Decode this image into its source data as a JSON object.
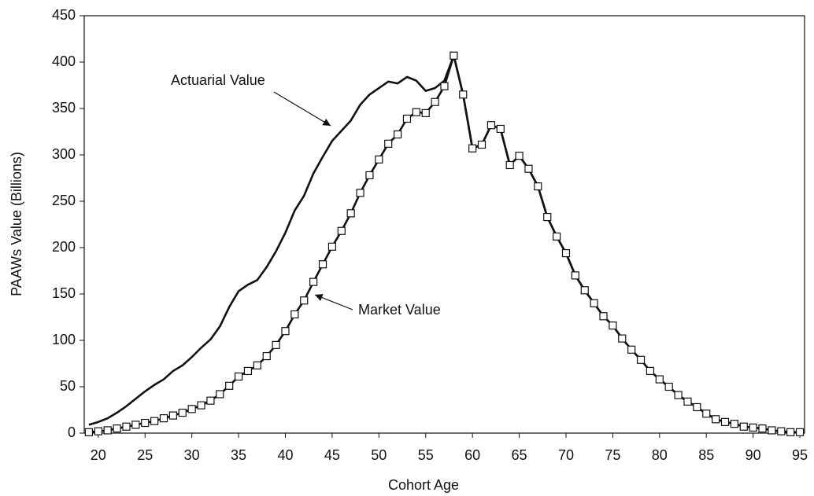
{
  "chart_data": {
    "type": "line",
    "xlabel": "Cohort Age",
    "ylabel": "PAAWs Value (Billions)",
    "annotations": [
      "Actuarial Value",
      "Market Value"
    ],
    "x": [
      19,
      20,
      21,
      22,
      23,
      24,
      25,
      26,
      27,
      28,
      29,
      30,
      31,
      32,
      33,
      34,
      35,
      36,
      37,
      38,
      39,
      40,
      41,
      42,
      43,
      44,
      45,
      46,
      47,
      48,
      49,
      50,
      51,
      52,
      53,
      54,
      55,
      56,
      57,
      58,
      59,
      60,
      61,
      62,
      63,
      64,
      65,
      66,
      67,
      68,
      69,
      70,
      71,
      72,
      73,
      74,
      75,
      76,
      77,
      78,
      79,
      80,
      81,
      82,
      83,
      84,
      85,
      86,
      87,
      88,
      89,
      90,
      91,
      92,
      93,
      94,
      95
    ],
    "series": [
      {
        "name": "Actuarial Value",
        "color": "#111111",
        "marker": null,
        "values": [
          9,
          12,
          16,
          22,
          29,
          37,
          45,
          52,
          58,
          67,
          73,
          82,
          92,
          101,
          115,
          136,
          153,
          160,
          165,
          179,
          196,
          216,
          240,
          256,
          280,
          298,
          315,
          326,
          337,
          354,
          365,
          372,
          379,
          377,
          384,
          380,
          369,
          372,
          380,
          407,
          365,
          307,
          311,
          332,
          328,
          289,
          299,
          285,
          266,
          233,
          212,
          194,
          170,
          154,
          140,
          126,
          116,
          102,
          90,
          79,
          67,
          58,
          50,
          41,
          34,
          28,
          21,
          15,
          12,
          10,
          7,
          6,
          5,
          3,
          2,
          1,
          1
        ]
      },
      {
        "name": "Market Value",
        "color": "#111111",
        "marker": "square",
        "values": [
          1,
          2,
          3,
          5,
          7,
          9,
          11,
          13,
          16,
          19,
          22,
          26,
          30,
          35,
          42,
          51,
          61,
          67,
          73,
          83,
          95,
          110,
          128,
          143,
          163,
          182,
          201,
          218,
          237,
          259,
          278,
          295,
          312,
          322,
          339,
          346,
          345,
          357,
          374,
          407,
          365,
          307,
          311,
          332,
          328,
          289,
          299,
          285,
          266,
          233,
          212,
          194,
          170,
          154,
          140,
          126,
          116,
          102,
          90,
          79,
          67,
          58,
          50,
          41,
          34,
          28,
          21,
          15,
          12,
          10,
          7,
          6,
          5,
          3,
          2,
          1,
          1
        ]
      }
    ],
    "xlim": [
      18.5,
      95.5
    ],
    "xticks": [
      20,
      25,
      30,
      35,
      40,
      45,
      50,
      55,
      60,
      65,
      70,
      75,
      80,
      85,
      90,
      95
    ],
    "ylim": [
      0,
      450
    ],
    "yticks": [
      0,
      50,
      100,
      150,
      200,
      250,
      300,
      350,
      400,
      450
    ]
  }
}
